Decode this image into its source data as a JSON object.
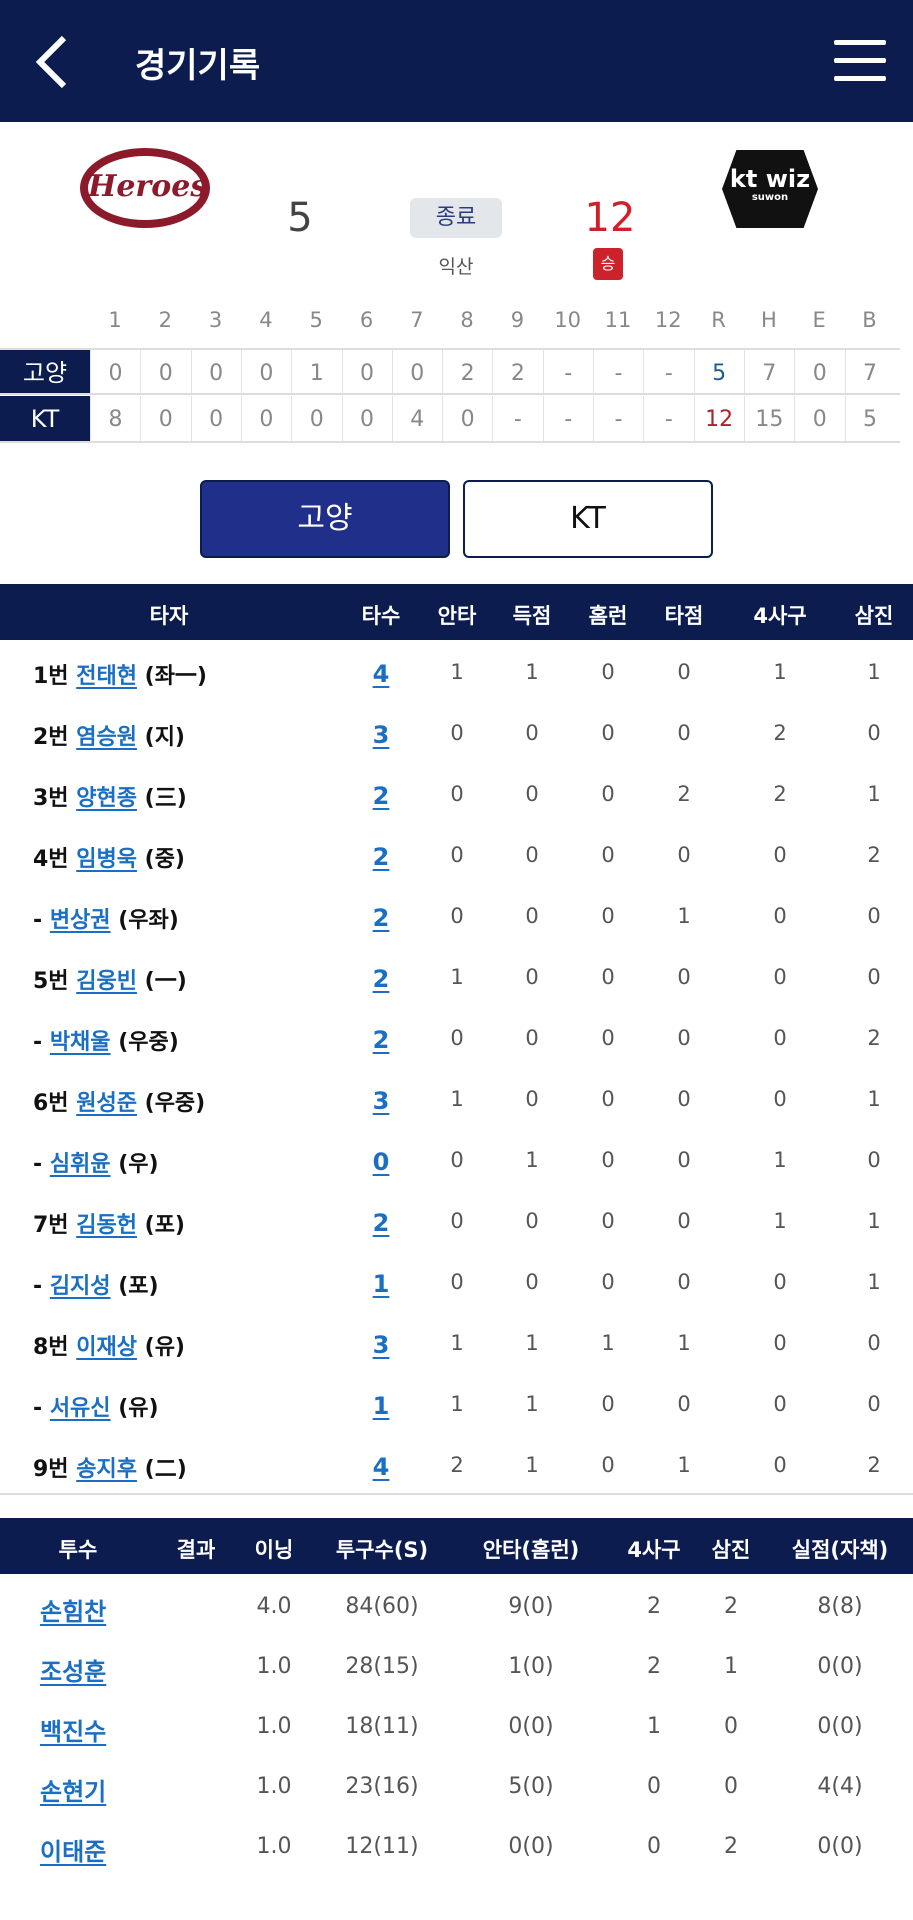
{
  "header": {
    "title": "경기기록",
    "back_icon": "chevron-left-icon",
    "menu_icon": "hamburger-menu-icon"
  },
  "colors": {
    "navy": "#0c1c4e",
    "link": "#1a6fc4",
    "win_red": "#cc2229"
  },
  "game": {
    "away": {
      "name": "고양",
      "logo_text": "Heroes",
      "score": "5"
    },
    "home": {
      "name": "KT",
      "logo_text": "kt wiz",
      "logo_sub": "suwon",
      "score": "12"
    },
    "status": "종료",
    "venue": "익산",
    "win_badge": "승"
  },
  "scoreboard": {
    "headers": [
      "1",
      "2",
      "3",
      "4",
      "5",
      "6",
      "7",
      "8",
      "9",
      "10",
      "11",
      "12",
      "R",
      "H",
      "E",
      "B"
    ],
    "rows": [
      {
        "team": "고양",
        "cells": [
          "0",
          "0",
          "0",
          "0",
          "1",
          "0",
          "0",
          "2",
          "2",
          "-",
          "-",
          "-",
          "5",
          "7",
          "0",
          "7"
        ]
      },
      {
        "team": "KT",
        "cells": [
          "8",
          "0",
          "0",
          "0",
          "0",
          "0",
          "4",
          "0",
          "-",
          "-",
          "-",
          "-",
          "12",
          "15",
          "0",
          "5"
        ]
      }
    ]
  },
  "team_tabs": [
    {
      "label": "고양",
      "active": true
    },
    {
      "label": "KT",
      "active": false
    }
  ],
  "batters": {
    "headers": [
      "타자",
      "타수",
      "안타",
      "득점",
      "홈런",
      "타점",
      "4사구",
      "삼진"
    ],
    "rows": [
      {
        "order": "1번",
        "name": "전태현",
        "pos": "(좌一)",
        "stats": [
          "4",
          "1",
          "1",
          "0",
          "0",
          "1",
          "1"
        ]
      },
      {
        "order": "2번",
        "name": "염승원",
        "pos": "(지)",
        "stats": [
          "3",
          "0",
          "0",
          "0",
          "0",
          "2",
          "0"
        ]
      },
      {
        "order": "3번",
        "name": "양현종",
        "pos": "(三)",
        "stats": [
          "2",
          "0",
          "0",
          "0",
          "2",
          "2",
          "1"
        ]
      },
      {
        "order": "4번",
        "name": "임병욱",
        "pos": "(중)",
        "stats": [
          "2",
          "0",
          "0",
          "0",
          "0",
          "0",
          "2"
        ]
      },
      {
        "order": "-",
        "name": "변상권",
        "pos": "(우좌)",
        "stats": [
          "2",
          "0",
          "0",
          "0",
          "1",
          "0",
          "0"
        ]
      },
      {
        "order": "5번",
        "name": "김웅빈",
        "pos": "(一)",
        "stats": [
          "2",
          "1",
          "0",
          "0",
          "0",
          "0",
          "0"
        ]
      },
      {
        "order": "-",
        "name": "박채울",
        "pos": "(우중)",
        "stats": [
          "2",
          "0",
          "0",
          "0",
          "0",
          "0",
          "2"
        ]
      },
      {
        "order": "6번",
        "name": "원성준",
        "pos": "(우중)",
        "stats": [
          "3",
          "1",
          "0",
          "0",
          "0",
          "0",
          "1"
        ]
      },
      {
        "order": "-",
        "name": "심휘윤",
        "pos": "(우)",
        "stats": [
          "0",
          "0",
          "1",
          "0",
          "0",
          "1",
          "0"
        ]
      },
      {
        "order": "7번",
        "name": "김동헌",
        "pos": "(포)",
        "stats": [
          "2",
          "0",
          "0",
          "0",
          "0",
          "1",
          "1"
        ]
      },
      {
        "order": "-",
        "name": "김지성",
        "pos": "(포)",
        "stats": [
          "1",
          "0",
          "0",
          "0",
          "0",
          "0",
          "1"
        ]
      },
      {
        "order": "8번",
        "name": "이재상",
        "pos": "(유)",
        "stats": [
          "3",
          "1",
          "1",
          "1",
          "1",
          "0",
          "0"
        ]
      },
      {
        "order": "-",
        "name": "서유신",
        "pos": "(유)",
        "stats": [
          "1",
          "1",
          "1",
          "0",
          "0",
          "0",
          "0"
        ]
      },
      {
        "order": "9번",
        "name": "송지후",
        "pos": "(二)",
        "stats": [
          "4",
          "2",
          "1",
          "0",
          "1",
          "0",
          "2"
        ]
      }
    ]
  },
  "pitchers": {
    "headers": [
      "투수",
      "결과",
      "이닝",
      "투구수(S)",
      "안타(홈런)",
      "4사구",
      "삼진",
      "실점(자책)"
    ],
    "rows": [
      {
        "name": "손힘찬",
        "stats": [
          "",
          "4.0",
          "84(60)",
          "9(0)",
          "2",
          "2",
          "8(8)"
        ]
      },
      {
        "name": "조성훈",
        "stats": [
          "",
          "1.0",
          "28(15)",
          "1(0)",
          "2",
          "1",
          "0(0)"
        ]
      },
      {
        "name": "백진수",
        "stats": [
          "",
          "1.0",
          "18(11)",
          "0(0)",
          "1",
          "0",
          "0(0)"
        ]
      },
      {
        "name": "손현기",
        "stats": [
          "",
          "1.0",
          "23(16)",
          "5(0)",
          "0",
          "0",
          "4(4)"
        ]
      },
      {
        "name": "이태준",
        "stats": [
          "",
          "1.0",
          "12(11)",
          "0(0)",
          "0",
          "2",
          "0(0)"
        ]
      }
    ]
  }
}
